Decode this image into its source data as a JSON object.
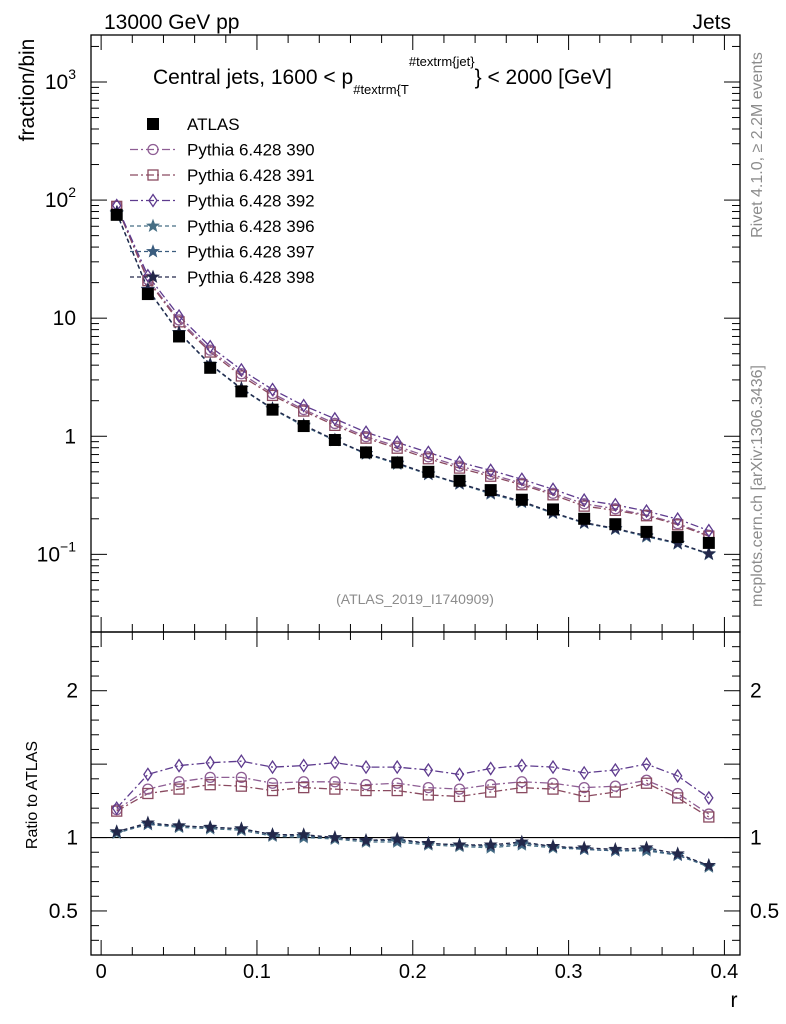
{
  "header": {
    "left": "13000 GeV pp",
    "right": "Jets"
  },
  "side_labels": {
    "rivet": "Rivet 4.1.0, ≥ 2.2M events",
    "mcplots": "mcplots.cern.ch [arXiv:1306.3436]"
  },
  "chart_data": {
    "type": "scatter",
    "title_main": "Central jets, 1600 < p",
    "title_sub": "#textrm{T",
    "title_sup": "#textrm{jet}",
    "title_end": "} < 2000 [GeV]",
    "watermark": "(ATLAS_2019_I1740909)",
    "xlabel": "r",
    "ylabel_top": "fraction/bin",
    "ylabel_bottom": "Ratio to ATLAS",
    "xlim": [
      -0.0065,
      0.41
    ],
    "ylim_top": [
      0.022,
      2500
    ],
    "ylim_bottom": [
      0.2,
      2.4
    ],
    "y_scale_top": "log",
    "x_ticks": [
      0,
      0.1,
      0.2,
      0.3,
      0.4
    ],
    "x_tick_labels": [
      "0",
      "0.1",
      "0.2",
      "0.3",
      "0.4"
    ],
    "top_ticks": [
      1000,
      100,
      10,
      1,
      0.1
    ],
    "top_tick_labels": [
      {
        "base": "10",
        "exp": "3"
      },
      {
        "base": "10",
        "exp": "2"
      },
      {
        "base": "10",
        "exp": ""
      },
      {
        "base": "1",
        "exp": ""
      },
      {
        "base": "10",
        "exp": "−1"
      }
    ],
    "bottom_ticks": [
      0.5,
      1,
      2
    ],
    "bottom_tick_labels": [
      "0.5",
      "1",
      "2"
    ],
    "x": [
      0.01,
      0.03,
      0.05,
      0.07,
      0.09,
      0.11,
      0.13,
      0.15,
      0.17,
      0.19,
      0.21,
      0.23,
      0.25,
      0.27,
      0.29,
      0.31,
      0.33,
      0.35,
      0.37,
      0.39
    ],
    "data": {
      "name": "ATLAS",
      "values": [
        75,
        16,
        7,
        3.8,
        2.4,
        1.68,
        1.22,
        0.93,
        0.73,
        0.6,
        0.5,
        0.42,
        0.35,
        0.29,
        0.24,
        0.2,
        0.18,
        0.155,
        0.14,
        0.125
      ]
    },
    "series": [
      {
        "name": "Pythia 6.428 390",
        "color": "#8e5e94",
        "marker": "circle",
        "dash": "8,3,2,3",
        "ratio": [
          1.19,
          1.33,
          1.38,
          1.41,
          1.41,
          1.37,
          1.38,
          1.38,
          1.36,
          1.37,
          1.34,
          1.33,
          1.36,
          1.38,
          1.37,
          1.34,
          1.35,
          1.39,
          1.3,
          1.16
        ]
      },
      {
        "name": "Pythia 6.428 391",
        "color": "#8a4a60",
        "marker": "square",
        "dash": "8,3,2,3",
        "ratio": [
          1.18,
          1.3,
          1.33,
          1.36,
          1.35,
          1.32,
          1.34,
          1.33,
          1.32,
          1.32,
          1.29,
          1.28,
          1.31,
          1.34,
          1.33,
          1.28,
          1.31,
          1.37,
          1.27,
          1.14
        ]
      },
      {
        "name": "Pythia 6.428 392",
        "color": "#5e3b8e",
        "marker": "diamond",
        "dash": "8,3,2,3",
        "ratio": [
          1.2,
          1.43,
          1.49,
          1.51,
          1.52,
          1.48,
          1.49,
          1.51,
          1.48,
          1.48,
          1.46,
          1.43,
          1.47,
          1.49,
          1.48,
          1.44,
          1.46,
          1.5,
          1.42,
          1.27
        ]
      },
      {
        "name": "Pythia 6.428 396",
        "color": "#466e84",
        "marker": "star",
        "dash": "4,3",
        "ratio": [
          1.03,
          1.09,
          1.07,
          1.06,
          1.05,
          1.01,
          1.0,
          0.99,
          0.97,
          0.97,
          0.95,
          0.94,
          0.93,
          0.95,
          0.93,
          0.92,
          0.91,
          0.91,
          0.88,
          0.8
        ]
      },
      {
        "name": "Pythia 6.428 397",
        "color": "#3a5c7e",
        "marker": "star",
        "dash": "4,3",
        "ratio": [
          1.04,
          1.09,
          1.08,
          1.07,
          1.06,
          1.02,
          1.01,
          1.0,
          0.98,
          0.98,
          0.96,
          0.95,
          0.94,
          0.96,
          0.94,
          0.92,
          0.91,
          0.92,
          0.88,
          0.81
        ]
      },
      {
        "name": "Pythia 6.428 398",
        "color": "#23284a",
        "marker": "star",
        "dash": "4,3",
        "ratio": [
          1.04,
          1.1,
          1.08,
          1.07,
          1.06,
          1.02,
          1.02,
          1.0,
          0.98,
          0.99,
          0.96,
          0.95,
          0.95,
          0.97,
          0.94,
          0.93,
          0.92,
          0.93,
          0.89,
          0.81
        ]
      }
    ]
  }
}
